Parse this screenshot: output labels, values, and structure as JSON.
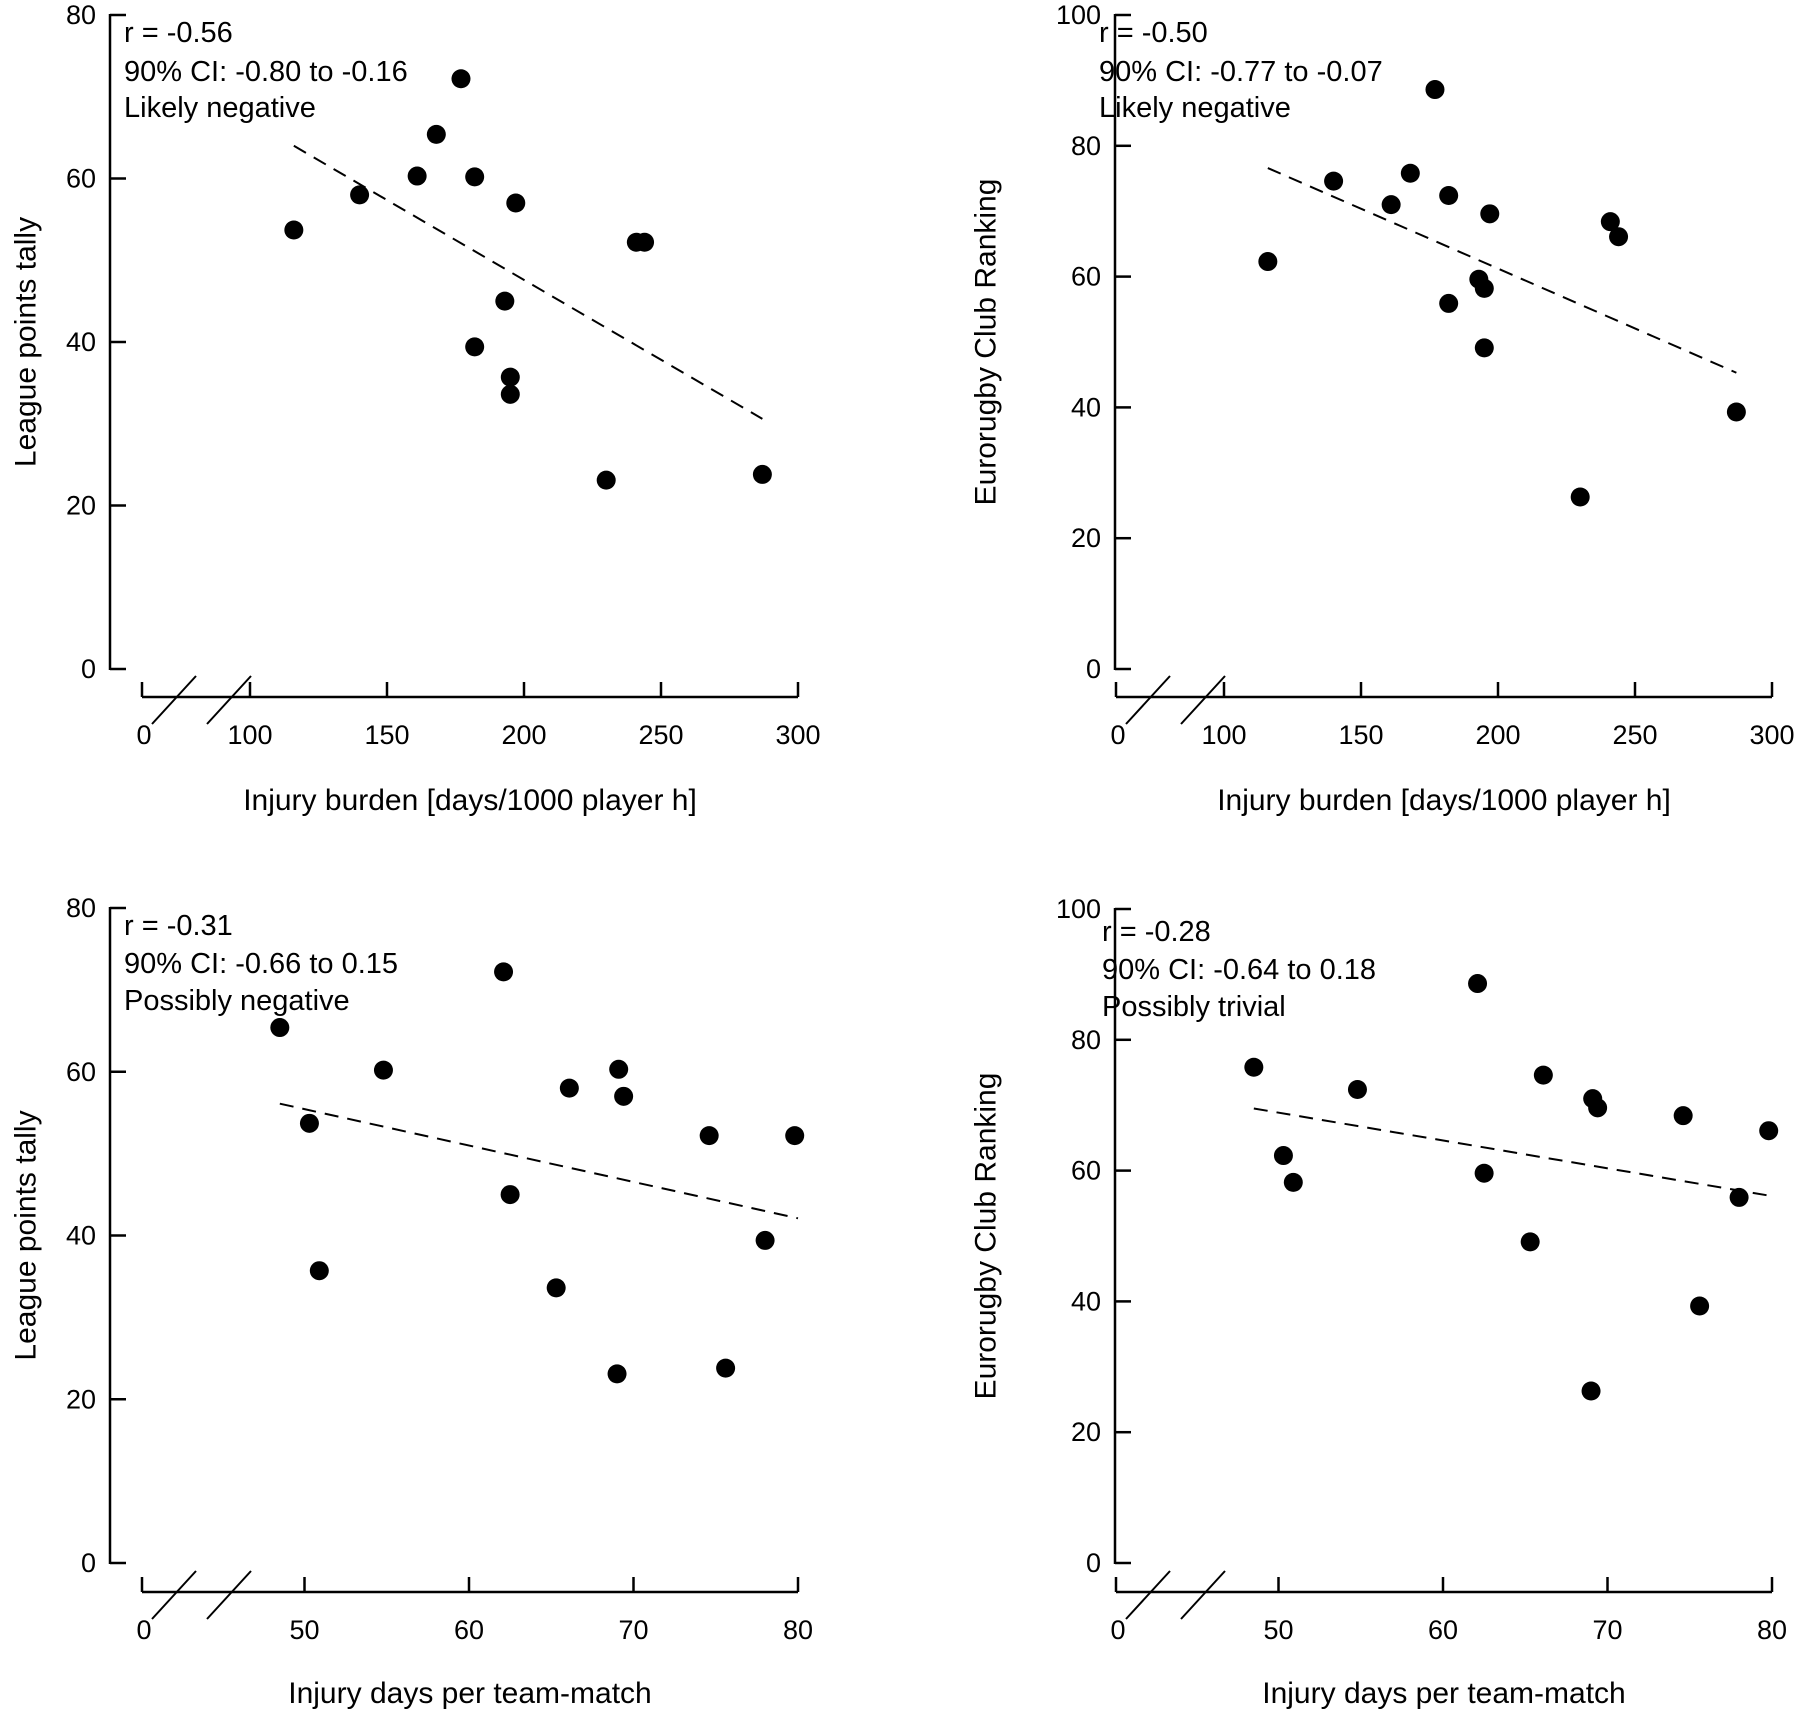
{
  "chart_data": [
    {
      "type": "scatter",
      "id": "a",
      "xlabel": "Injury burden [days/1000 player h]",
      "ylabel": "League points tally",
      "annotation": [
        "r = -0.56",
        "90% CI: -0.80 to -0.16",
        "Likely negative"
      ],
      "xlim": [
        100,
        300
      ],
      "ylim": [
        0,
        80
      ],
      "xticks": [
        100,
        150,
        200,
        250,
        300
      ],
      "yticks": [
        0,
        20,
        40,
        60,
        80
      ],
      "x_break_label": "0",
      "x": [
        116,
        140,
        161,
        168,
        177,
        182,
        182,
        193,
        195,
        195,
        197,
        230,
        241,
        244,
        287
      ],
      "y": [
        53.7,
        58,
        60.3,
        65.4,
        72.2,
        60.2,
        39.4,
        45,
        35.7,
        33.6,
        57,
        23.1,
        52.2,
        52.2,
        23.8
      ],
      "trend": {
        "x": [
          116,
          287
        ],
        "y": [
          64,
          30.6
        ]
      }
    },
    {
      "type": "scatter",
      "id": "b",
      "xlabel": "Injury burden [days/1000 player h]",
      "ylabel": "Eurorugby Club Ranking",
      "annotation": [
        "r = -0.50",
        "90% CI: -0.77 to -0.07",
        "Likely negative"
      ],
      "xlim": [
        100,
        300
      ],
      "ylim": [
        0,
        100
      ],
      "xticks": [
        100,
        150,
        200,
        250,
        300
      ],
      "yticks": [
        0,
        20,
        40,
        60,
        80,
        100
      ],
      "x_break_label": "0",
      "x": [
        116,
        140,
        161,
        168,
        177,
        182,
        182,
        193,
        195,
        195,
        197,
        230,
        241,
        244,
        287
      ],
      "y": [
        62.3,
        74.6,
        71,
        75.8,
        88.6,
        72.4,
        55.9,
        59.6,
        58.2,
        49.1,
        69.6,
        26.3,
        68.4,
        66.1,
        39.3
      ],
      "trend": {
        "x": [
          116,
          287
        ],
        "y": [
          76.6,
          45.3
        ]
      }
    },
    {
      "type": "scatter",
      "id": "c",
      "xlabel": "Injury days per team-match",
      "ylabel": "League points tally",
      "annotation": [
        "r = -0.31",
        "90% CI: -0.66 to 0.15",
        "Possibly negative"
      ],
      "xlim": [
        40,
        80
      ],
      "ylim": [
        0,
        80
      ],
      "xticks": [
        50,
        60,
        70,
        80
      ],
      "yticks": [
        0,
        20,
        40,
        60,
        80
      ],
      "x_break_label": "0",
      "x": [
        48.5,
        50.3,
        50.9,
        54.8,
        62.1,
        62.5,
        65.3,
        66.1,
        69,
        69.1,
        69.4,
        74.6,
        75.6,
        78,
        79.8
      ],
      "y": [
        65.4,
        53.7,
        35.7,
        60.2,
        72.2,
        45,
        33.6,
        58,
        23.1,
        60.3,
        57,
        52.2,
        23.8,
        39.4,
        52.2
      ],
      "trend": {
        "x": [
          48.5,
          80
        ],
        "y": [
          56.1,
          42.1
        ]
      }
    },
    {
      "type": "scatter",
      "id": "d",
      "xlabel": "Injury days per team-match",
      "ylabel": "Eurorugby Club Ranking",
      "annotation": [
        "r = -0.28",
        "90% CI: -0.64 to 0.18",
        "Possibly trivial"
      ],
      "xlim": [
        40,
        80
      ],
      "ylim": [
        0,
        100
      ],
      "xticks": [
        50,
        60,
        70,
        80
      ],
      "yticks": [
        0,
        20,
        40,
        60,
        80,
        100
      ],
      "x_break_label": "0",
      "x": [
        48.5,
        50.3,
        50.9,
        54.8,
        62.1,
        62.5,
        65.3,
        66.1,
        69,
        69.1,
        69.4,
        74.6,
        75.6,
        78,
        79.8
      ],
      "y": [
        75.8,
        62.3,
        58.2,
        72.4,
        88.6,
        59.6,
        49.1,
        74.6,
        26.3,
        71,
        69.6,
        68.4,
        39.3,
        55.9,
        66.1
      ],
      "trend": {
        "x": [
          48.5,
          80
        ],
        "y": [
          69.5,
          56.1
        ]
      }
    }
  ]
}
